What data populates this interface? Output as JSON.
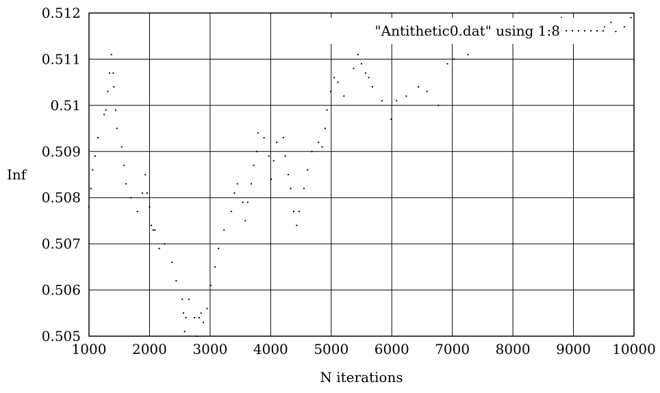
{
  "chart_data": {
    "type": "scatter",
    "xlabel": "N iterations",
    "ylabel": "Inf",
    "xlim": [
      1000,
      10000
    ],
    "ylim": [
      0.505,
      0.512
    ],
    "x_ticks": [
      1000,
      2000,
      3000,
      4000,
      5000,
      6000,
      7000,
      8000,
      9000,
      10000
    ],
    "y_ticks": [
      0.505,
      0.506,
      0.507,
      0.508,
      0.509,
      0.51,
      0.511,
      0.512
    ],
    "x_tick_labels": [
      "1000",
      "2000",
      "3000",
      "4000",
      "5000",
      "6000",
      "7000",
      "8000",
      "9000",
      "10000"
    ],
    "y_tick_labels": [
      "0.505",
      "0.506",
      "0.507",
      "0.508",
      "0.509",
      "0.51",
      "0.511",
      "0.512"
    ],
    "grid": true,
    "legend_position": "top-right",
    "series": [
      {
        "name": "\"Antithetic0.dat\" using 1:8",
        "x": [
          1000,
          1030,
          1060,
          1100,
          1150,
          1250,
          1280,
          1310,
          1340,
          1370,
          1400,
          1410,
          1440,
          1460,
          1540,
          1580,
          1610,
          1690,
          1800,
          1880,
          1930,
          1960,
          2000,
          2030,
          2060,
          2090,
          2160,
          2250,
          2370,
          2440,
          2540,
          2560,
          2580,
          2600,
          2650,
          2740,
          2780,
          2820,
          2850,
          2890,
          2950,
          3010,
          3080,
          3140,
          3230,
          3350,
          3400,
          3450,
          3540,
          3580,
          3620,
          3680,
          3720,
          3770,
          3790,
          3890,
          3970,
          4010,
          4050,
          4100,
          4210,
          4240,
          4290,
          4330,
          4380,
          4430,
          4470,
          4550,
          4610,
          4680,
          4790,
          4850,
          4900,
          4930,
          4990,
          5050,
          5110,
          5210,
          5370,
          5440,
          5500,
          5570,
          5620,
          5680,
          5840,
          5990,
          6080,
          6240,
          6440,
          6580,
          6770,
          6920,
          7030,
          7260,
          7370,
          7440,
          7620,
          7740,
          7880,
          7970,
          8070,
          8210,
          8450,
          8560,
          8700,
          8800,
          8890,
          9000,
          9090,
          9180,
          9270,
          9410,
          9510,
          9620,
          9700,
          9840,
          9950
        ],
        "values": [
          0.5078,
          0.5082,
          0.5086,
          0.5089,
          0.5093,
          0.5098,
          0.5099,
          0.5103,
          0.5107,
          0.5111,
          0.5107,
          0.5104,
          0.5099,
          0.5095,
          0.5091,
          0.5087,
          0.5083,
          0.508,
          0.5077,
          0.5081,
          0.5085,
          0.5081,
          0.5078,
          0.5074,
          0.5073,
          0.5073,
          0.5069,
          0.507,
          0.5066,
          0.5062,
          0.5058,
          0.5055,
          0.5051,
          0.5054,
          0.5058,
          0.5054,
          0.505,
          0.5054,
          0.5055,
          0.5053,
          0.5056,
          0.5061,
          0.5065,
          0.5069,
          0.5073,
          0.5077,
          0.5081,
          0.5083,
          0.5079,
          0.5075,
          0.5079,
          0.5083,
          0.5087,
          0.509,
          0.5094,
          0.5093,
          0.5089,
          0.5084,
          0.5088,
          0.5092,
          0.5093,
          0.5089,
          0.5085,
          0.5082,
          0.5077,
          0.5074,
          0.5077,
          0.5082,
          0.5086,
          0.509,
          0.5092,
          0.5091,
          0.5095,
          0.5099,
          0.5103,
          0.5106,
          0.5105,
          0.5102,
          0.5108,
          0.5111,
          0.5109,
          0.5107,
          0.5106,
          0.5104,
          0.5101,
          0.5097,
          0.5101,
          0.5102,
          0.5104,
          0.5103,
          0.51,
          0.5109,
          0.511,
          0.5111,
          0.5114,
          0.5116,
          0.5117,
          0.5116,
          0.5115,
          0.5117,
          0.5116,
          0.5115,
          0.5114,
          0.5116,
          0.5118,
          0.5119,
          0.5117,
          0.5116,
          0.5117,
          0.5116,
          0.5114,
          0.5116,
          0.5117,
          0.5118,
          0.5116,
          0.5117,
          0.5119
        ]
      }
    ]
  }
}
